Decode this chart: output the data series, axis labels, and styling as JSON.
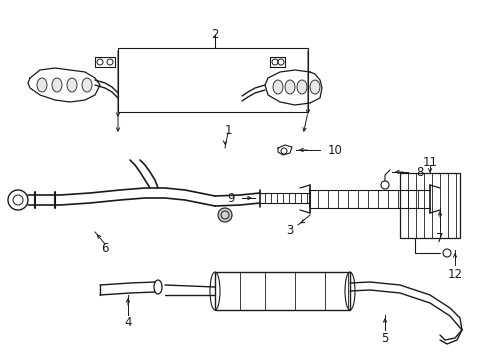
{
  "bg_color": "#ffffff",
  "line_color": "#1a1a1a",
  "figsize": [
    4.89,
    3.6
  ],
  "dpi": 100,
  "label_fontsize": 8.5,
  "xlim": [
    0,
    489
  ],
  "ylim": [
    0,
    360
  ]
}
